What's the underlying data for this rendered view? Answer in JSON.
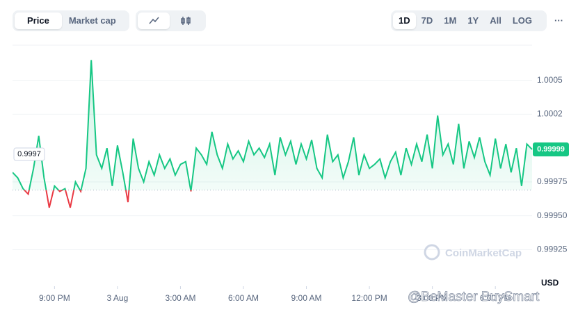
{
  "toolbar": {
    "tabs": [
      "Price",
      "Market cap"
    ],
    "ranges": [
      "1D",
      "7D",
      "1M",
      "1Y",
      "All",
      "LOG"
    ],
    "more": "···"
  },
  "chart_data": {
    "type": "line",
    "series": [
      {
        "name": "Price",
        "color": "#16c784",
        "down_color": "#ea3943",
        "values": [
          0.99982,
          0.99978,
          0.9997,
          0.99966,
          0.99985,
          1.00009,
          0.99978,
          0.99956,
          0.99972,
          0.99968,
          0.9997,
          0.99956,
          0.99975,
          0.99968,
          0.99985,
          1.00065,
          0.99995,
          0.99985,
          1.0,
          0.99972,
          1.00002,
          0.99982,
          0.9996,
          1.00007,
          0.99985,
          0.99975,
          0.9999,
          0.9998,
          0.99995,
          0.99985,
          0.99992,
          0.9998,
          0.99988,
          0.9999,
          0.99968,
          1.0,
          0.99995,
          0.99988,
          1.00012,
          0.99995,
          0.99985,
          1.00003,
          0.99992,
          0.99998,
          0.9999,
          1.00005,
          0.99995,
          1.0,
          0.99993,
          1.00003,
          0.9998,
          1.00008,
          0.99995,
          1.00005,
          0.99988,
          1.00003,
          0.99992,
          1.00006,
          0.99985,
          0.99978,
          1.0001,
          0.9999,
          0.99995,
          0.99978,
          0.9999,
          1.00008,
          0.9998,
          0.99995,
          0.99985,
          0.99988,
          0.99992,
          0.99978,
          0.9999,
          0.99997,
          0.9998,
          1.0,
          0.99988,
          1.00003,
          0.9999,
          1.0001,
          0.99985,
          1.00024,
          0.99995,
          1.00003,
          0.99988,
          1.00018,
          0.99985,
          1.00005,
          0.99993,
          1.00008,
          0.9999,
          0.9998,
          1.00007,
          0.99985,
          1.00003,
          0.99982,
          1.0,
          0.99972,
          1.00003,
          0.99999
        ]
      }
    ],
    "baseline": 0.99969,
    "open_label": 0.9997,
    "last_price": 0.99999,
    "xlim": [
      0,
      99
    ],
    "xticks": [
      {
        "value": 8,
        "label": "9:00 PM"
      },
      {
        "value": 20,
        "label": "3 Aug"
      },
      {
        "value": 32,
        "label": "3:00 AM"
      },
      {
        "value": 44,
        "label": "6:00 AM"
      },
      {
        "value": 56,
        "label": "9:00 AM"
      },
      {
        "value": 68,
        "label": "12:00 PM"
      },
      {
        "value": 80,
        "label": "3:00 PM"
      },
      {
        "value": 92,
        "label": "6:00 PM"
      }
    ],
    "ylim": [
      0.99898,
      1.00076
    ],
    "yticks": [
      0.99925,
      {
        "value": 0.9995,
        "label": "0.99950"
      },
      0.99975,
      {
        "value": 1.00025,
        "label": "1.0002"
      },
      1.0005
    ],
    "y_unit": "USD",
    "grid": true,
    "watermark": "CoinMarketCap",
    "credit": "@BeMaster BuySmart"
  }
}
